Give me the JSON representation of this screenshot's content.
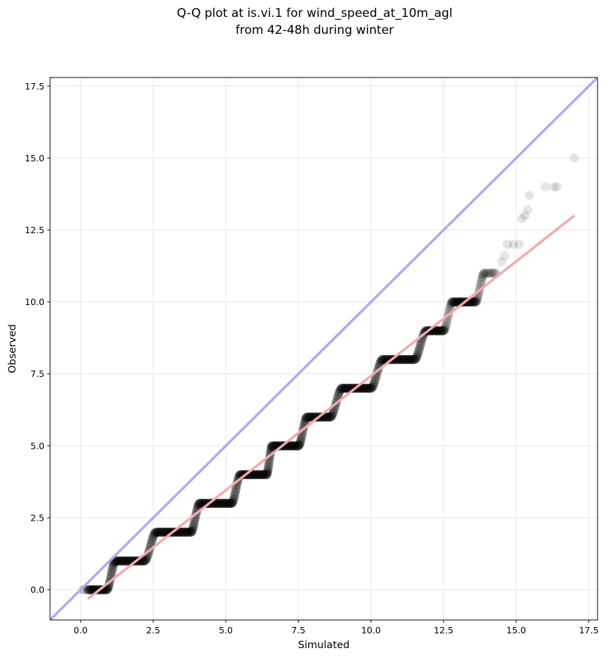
{
  "chart_data": {
    "type": "scatter",
    "title": [
      "Q-Q plot at is.vi.1 for wind_speed_at_10m_agl",
      "from 42-48h during winter"
    ],
    "xlabel": "Simulated",
    "ylabel": "Observed",
    "xlim": [
      -1.05,
      17.8
    ],
    "ylim": [
      -1.05,
      17.8
    ],
    "xticks": [
      0.0,
      2.5,
      5.0,
      7.5,
      10.0,
      12.5,
      15.0,
      17.5
    ],
    "xtick_labels": [
      "0.0",
      "2.5",
      "5.0",
      "7.5",
      "10.0",
      "12.5",
      "15.0",
      "17.5"
    ],
    "yticks": [
      0.0,
      2.5,
      5.0,
      7.5,
      10.0,
      12.5,
      15.0,
      17.5
    ],
    "ytick_labels": [
      "0.0",
      "2.5",
      "5.0",
      "7.5",
      "10.0",
      "12.5",
      "15.0",
      "17.5"
    ],
    "grid": true,
    "identity_line": {
      "color": "#aaaaf5",
      "from": [
        -1.05,
        -1.05
      ],
      "to": [
        17.8,
        17.8
      ]
    },
    "fit_line": {
      "color": "#f5a9a9",
      "from": [
        0.25,
        -0.32
      ],
      "to": [
        17.0,
        13.0
      ]
    },
    "point_color": "#000000",
    "steps": [
      {
        "obs": 0,
        "x_start": 0.25,
        "x_end": 0.9
      },
      {
        "obs": 1,
        "x_start": 1.2,
        "x_end": 2.2
      },
      {
        "obs": 2,
        "x_start": 2.6,
        "x_end": 3.8
      },
      {
        "obs": 3,
        "x_start": 4.1,
        "x_end": 5.2
      },
      {
        "obs": 4,
        "x_start": 5.5,
        "x_end": 6.4
      },
      {
        "obs": 5,
        "x_start": 6.6,
        "x_end": 7.5
      },
      {
        "obs": 6,
        "x_start": 7.8,
        "x_end": 8.6
      },
      {
        "obs": 7,
        "x_start": 9.0,
        "x_end": 10.0
      },
      {
        "obs": 8,
        "x_start": 10.4,
        "x_end": 11.5
      },
      {
        "obs": 9,
        "x_start": 11.9,
        "x_end": 12.5
      },
      {
        "obs": 10,
        "x_start": 12.8,
        "x_end": 13.6
      },
      {
        "obs": 11,
        "x_start": 13.9,
        "x_end": 14.3
      }
    ],
    "transitions": [
      {
        "x_from": 0.9,
        "x_to": 1.2,
        "y_from": 0,
        "y_to": 1
      },
      {
        "x_from": 2.2,
        "x_to": 2.6,
        "y_from": 1,
        "y_to": 2
      },
      {
        "x_from": 3.8,
        "x_to": 4.1,
        "y_from": 2,
        "y_to": 3
      },
      {
        "x_from": 5.2,
        "x_to": 5.5,
        "y_from": 3,
        "y_to": 4
      },
      {
        "x_from": 6.4,
        "x_to": 6.6,
        "y_from": 4,
        "y_to": 5
      },
      {
        "x_from": 7.5,
        "x_to": 7.8,
        "y_from": 5,
        "y_to": 6
      },
      {
        "x_from": 8.6,
        "x_to": 9.0,
        "y_from": 6,
        "y_to": 7
      },
      {
        "x_from": 10.0,
        "x_to": 10.4,
        "y_from": 7,
        "y_to": 8
      },
      {
        "x_from": 11.5,
        "x_to": 11.9,
        "y_from": 8,
        "y_to": 9
      },
      {
        "x_from": 12.5,
        "x_to": 12.8,
        "y_from": 9,
        "y_to": 10
      },
      {
        "x_from": 13.6,
        "x_to": 13.9,
        "y_from": 10,
        "y_to": 11
      }
    ],
    "tail_points": [
      [
        0.4,
        0.0
      ],
      [
        0.1,
        0.0
      ],
      [
        14.5,
        11.4
      ],
      [
        14.6,
        11.6
      ],
      [
        14.7,
        12.0
      ],
      [
        14.9,
        12.0
      ],
      [
        15.1,
        12.0
      ],
      [
        15.2,
        12.9
      ],
      [
        15.3,
        13.0
      ],
      [
        15.4,
        13.2
      ],
      [
        15.45,
        13.7
      ],
      [
        16.0,
        14.0
      ],
      [
        16.3,
        14.0
      ],
      [
        16.4,
        14.0
      ],
      [
        17.0,
        15.0
      ]
    ]
  }
}
